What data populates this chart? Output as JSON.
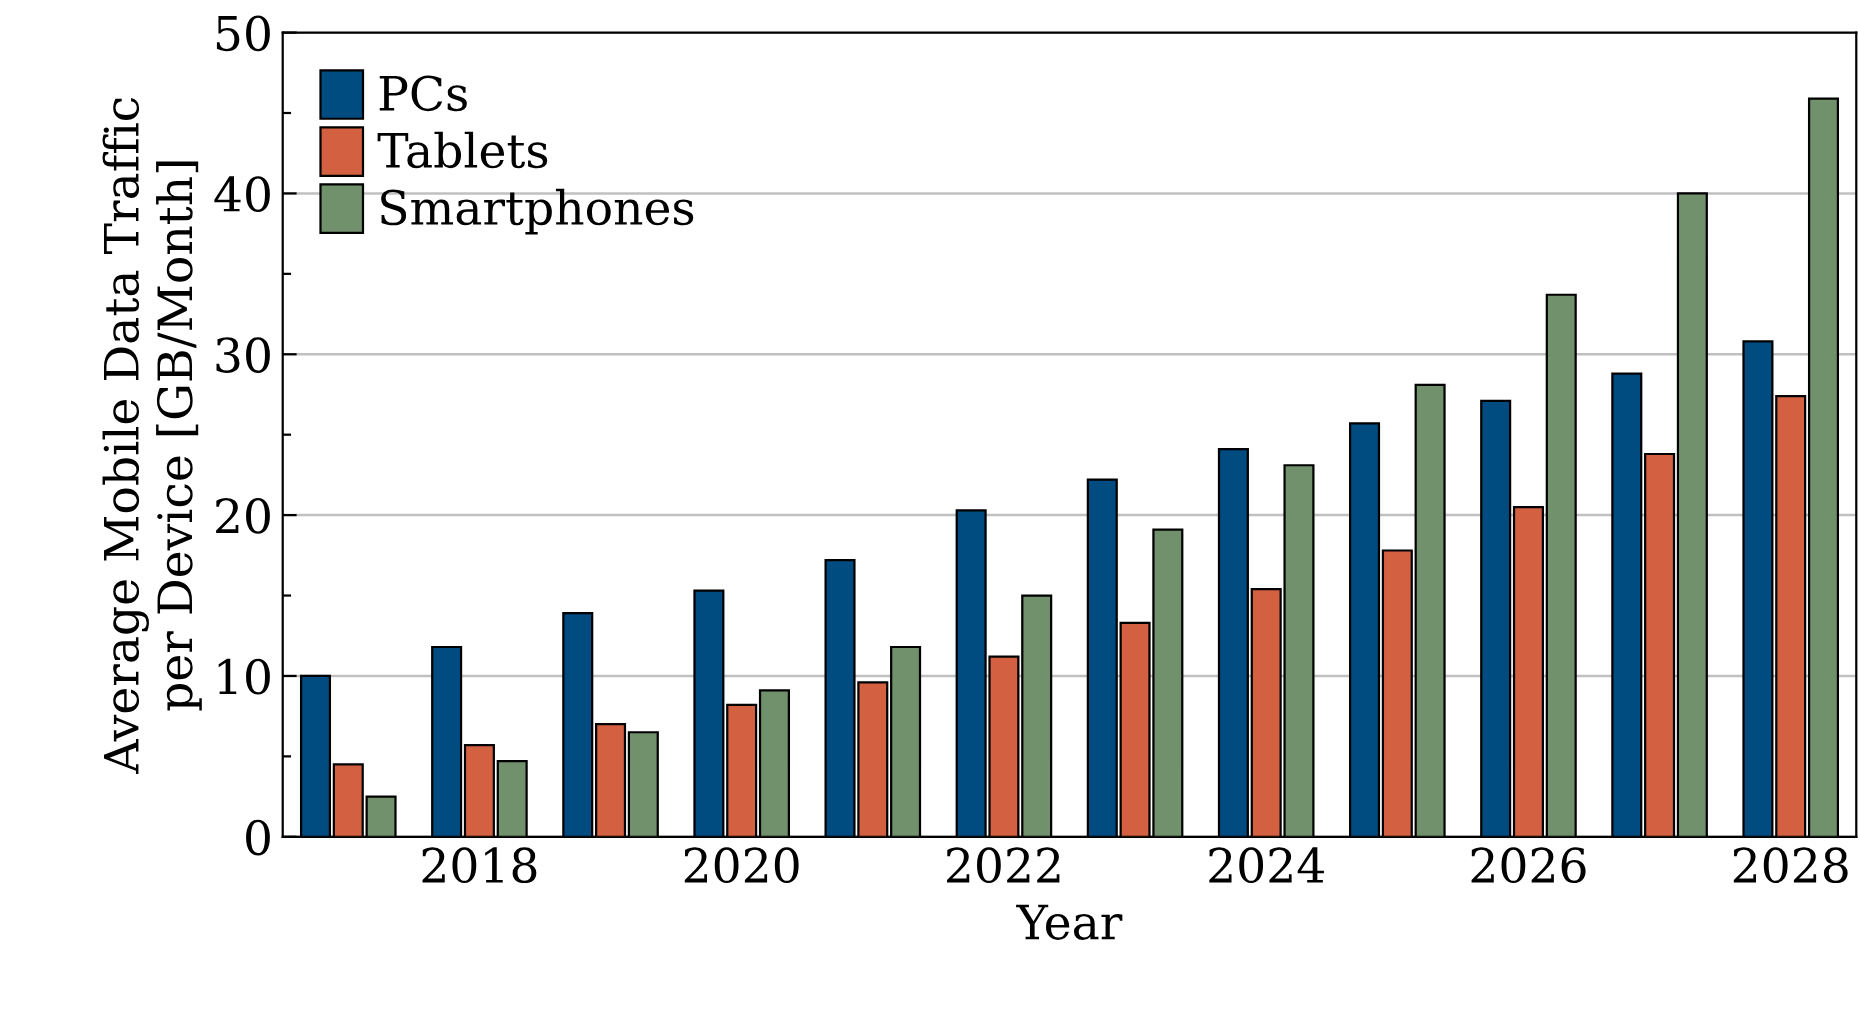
{
  "chart_data": {
    "type": "bar",
    "xlabel": "Year",
    "ylabel": "Average Mobile Data Traffic\nper Device [GB/Month]",
    "x": [
      2017,
      2018,
      2019,
      2020,
      2021,
      2022,
      2023,
      2024,
      2025,
      2026,
      2027,
      2028
    ],
    "series": [
      {
        "name": "PCs",
        "color": "#004b7f",
        "values": [
          10.0,
          11.8,
          13.9,
          15.3,
          17.2,
          20.3,
          22.2,
          24.1,
          25.7,
          27.1,
          28.8,
          30.8
        ]
      },
      {
        "name": "Tablets",
        "color": "#d36141",
        "values": [
          4.5,
          5.7,
          7.0,
          8.2,
          9.6,
          11.2,
          13.3,
          15.4,
          17.8,
          20.5,
          23.8,
          27.4
        ]
      },
      {
        "name": "Smartphones",
        "color": "#70916b",
        "values": [
          2.5,
          4.7,
          6.5,
          9.1,
          11.8,
          15.0,
          19.1,
          23.1,
          28.1,
          33.7,
          40.0,
          45.9
        ]
      }
    ],
    "xlim": [
      2016.5,
      2028.5
    ],
    "xticks": [
      2018,
      2020,
      2022,
      2024,
      2026,
      2028
    ],
    "ylim": [
      0,
      50
    ],
    "yticks": [
      0,
      {
        "value": 5,
        "label": null
      },
      10,
      {
        "value": 15,
        "label": null
      },
      20,
      {
        "value": 25,
        "label": null
      },
      30,
      {
        "value": 35,
        "label": null
      },
      40,
      {
        "value": 45,
        "label": null
      },
      50
    ],
    "grid": "y",
    "legend": "top left"
  }
}
